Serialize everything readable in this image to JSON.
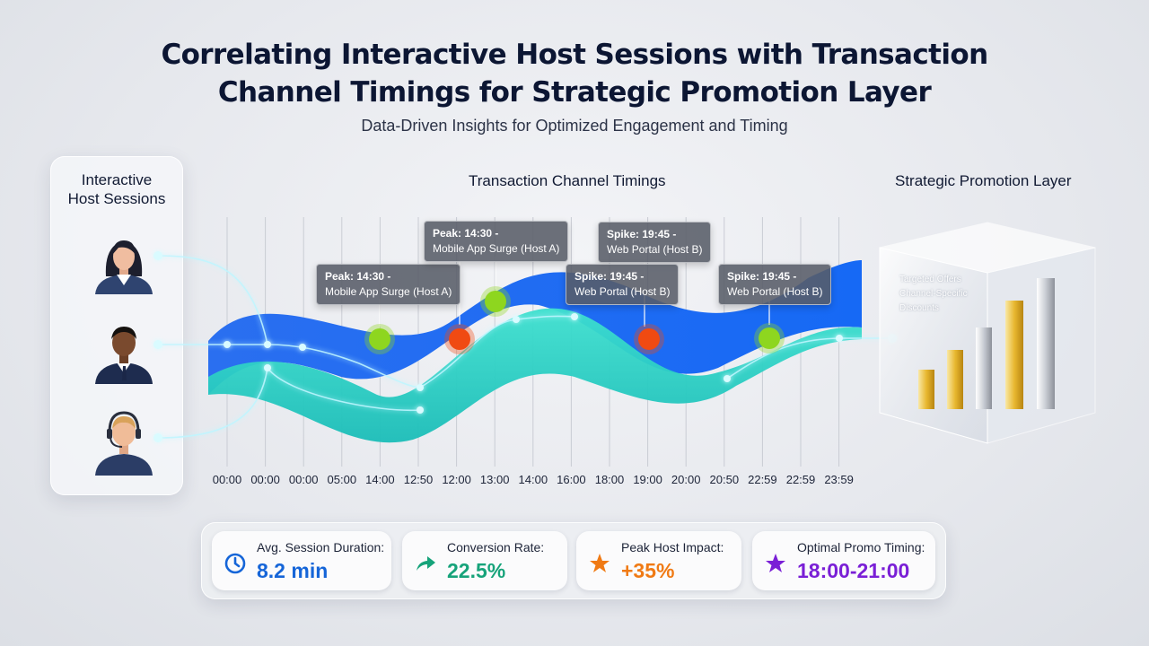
{
  "title_line1": "Correlating Interactive Host Sessions with Transaction",
  "title_line2": "Channel Timings for Strategic Promotion Layer",
  "subtitle": "Data-Driven Insights for Optimized Engagement and Timing",
  "hosts_panel": {
    "title_line1": "Interactive",
    "title_line2": "Host Sessions"
  },
  "channel_section_label": "Transaction Channel Timings",
  "promotion_section_label": "Strategic Promotion Layer",
  "time_ticks": [
    "00:00",
    "00:00",
    "00:00",
    "05:00",
    "14:00",
    "12:50",
    "12:00",
    "13:00",
    "14:00",
    "16:00",
    "18:00",
    "19:00",
    "20:00",
    "20:50",
    "22:59",
    "22:59",
    "23:59"
  ],
  "callouts": [
    {
      "head": "Peak: 14:30 -",
      "body": "Mobile App Surge (Host A)"
    },
    {
      "head": "Peak: 14:30 -",
      "body": "Mobile App Surge (Host A)"
    },
    {
      "head": "Spike: 19:45 -",
      "body": "Web Portal (Host B)"
    },
    {
      "head": "Spike: 19:45 -",
      "body": "Web Portal (Host B)"
    },
    {
      "head": "Spike: 19:45 -",
      "body": "Web Portal (Host B)"
    }
  ],
  "cube_labels": [
    "Targeted Offers",
    "Channel-Specific",
    "Discounts"
  ],
  "metrics": [
    {
      "label": "Avg. Session Duration:",
      "value": "8.2 min",
      "icon": "clock-icon",
      "color": "#1565d8"
    },
    {
      "label": "Conversion Rate:",
      "value": "22.5%",
      "icon": "trend-arrow-icon",
      "color": "#16a37a"
    },
    {
      "label": "Peak Host Impact:",
      "value": "+35%",
      "icon": "star-icon",
      "color": "#f07a14"
    },
    {
      "label": "Optimal Promo Timing:",
      "value": "18:00-21:00",
      "icon": "star-icon",
      "color": "#7a1fd6"
    }
  ],
  "colors": {
    "blue_band": "#1f6ff2",
    "teal_band": "#2fd0c4",
    "peak_marker": "#8ed61f",
    "spike_marker": "#f04a12"
  }
}
